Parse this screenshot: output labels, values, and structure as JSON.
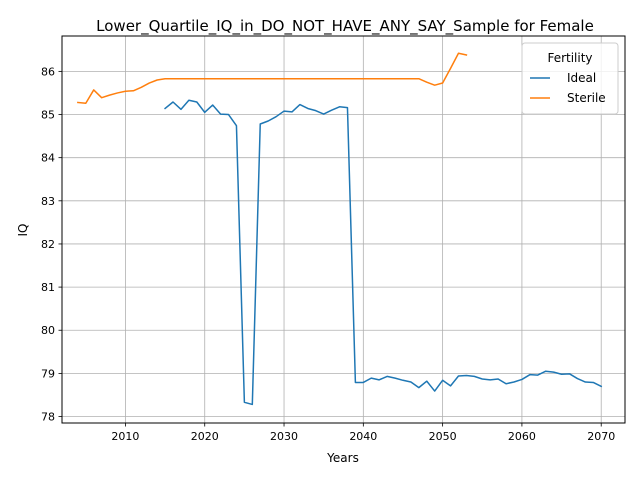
{
  "chart_data": {
    "type": "line",
    "title": "Lower_Quartile_IQ_in_DO_NOT_HAVE_ANY_SAY_Sample for Female",
    "xlabel": "Years",
    "ylabel": "IQ",
    "xlim": [
      2002,
      2073
    ],
    "ylim": [
      77.85,
      86.82
    ],
    "xticks": [
      2010,
      2020,
      2030,
      2040,
      2050,
      2060,
      2070
    ],
    "yticks": [
      78,
      79,
      80,
      81,
      82,
      83,
      84,
      85,
      86
    ],
    "grid": true,
    "legend": {
      "title": "Fertility",
      "placement": "top-right"
    },
    "series": [
      {
        "name": "Ideal",
        "color": "#1f77b4",
        "x": [
          2015,
          2016,
          2017,
          2018,
          2019,
          2020,
          2021,
          2022,
          2023,
          2024,
          2025,
          2026,
          2027,
          2028,
          2029,
          2030,
          2031,
          2032,
          2033,
          2034,
          2035,
          2036,
          2037,
          2038,
          2039,
          2040,
          2041,
          2042,
          2043,
          2044,
          2045,
          2046,
          2047,
          2048,
          2049,
          2050,
          2051,
          2052,
          2053,
          2054,
          2055,
          2056,
          2057,
          2058,
          2059,
          2060,
          2061,
          2062,
          2063,
          2064,
          2065,
          2066,
          2067,
          2068,
          2069,
          2070
        ],
        "y": [
          85.14,
          85.29,
          85.12,
          85.33,
          85.29,
          85.05,
          85.22,
          85.01,
          85.0,
          84.74,
          78.33,
          78.28,
          84.78,
          84.85,
          84.95,
          85.08,
          85.06,
          85.23,
          85.14,
          85.09,
          85.01,
          85.1,
          85.18,
          85.16,
          78.79,
          78.79,
          78.89,
          78.85,
          78.93,
          78.89,
          78.84,
          78.8,
          78.67,
          78.82,
          78.59,
          78.84,
          78.71,
          78.94,
          78.95,
          78.93,
          78.87,
          78.85,
          78.87,
          78.76,
          78.8,
          78.86,
          78.97,
          78.96,
          79.05,
          79.03,
          78.98,
          78.99,
          78.88,
          78.8,
          78.79,
          78.7
        ]
      },
      {
        "name": "Sterile",
        "color": "#ff7f0e",
        "x": [
          2004,
          2005,
          2006,
          2007,
          2008,
          2009,
          2010,
          2011,
          2012,
          2013,
          2014,
          2015,
          2016,
          2017,
          2018,
          2019,
          2020,
          2021,
          2022,
          2023,
          2024,
          2025,
          2026,
          2027,
          2028,
          2029,
          2030,
          2031,
          2032,
          2033,
          2034,
          2035,
          2036,
          2037,
          2038,
          2039,
          2040,
          2041,
          2042,
          2043,
          2044,
          2045,
          2046,
          2047,
          2048,
          2049,
          2050,
          2051,
          2052,
          2053
        ],
        "y": [
          85.28,
          85.26,
          85.57,
          85.39,
          85.45,
          85.5,
          85.54,
          85.55,
          85.63,
          85.73,
          85.8,
          85.83,
          85.83,
          85.83,
          85.83,
          85.83,
          85.83,
          85.83,
          85.83,
          85.83,
          85.83,
          85.83,
          85.83,
          85.83,
          85.83,
          85.83,
          85.83,
          85.83,
          85.83,
          85.83,
          85.83,
          85.83,
          85.83,
          85.83,
          85.83,
          85.83,
          85.83,
          85.83,
          85.83,
          85.83,
          85.83,
          85.83,
          85.83,
          85.83,
          85.75,
          85.68,
          85.73,
          86.07,
          86.42,
          86.38
        ]
      }
    ]
  }
}
